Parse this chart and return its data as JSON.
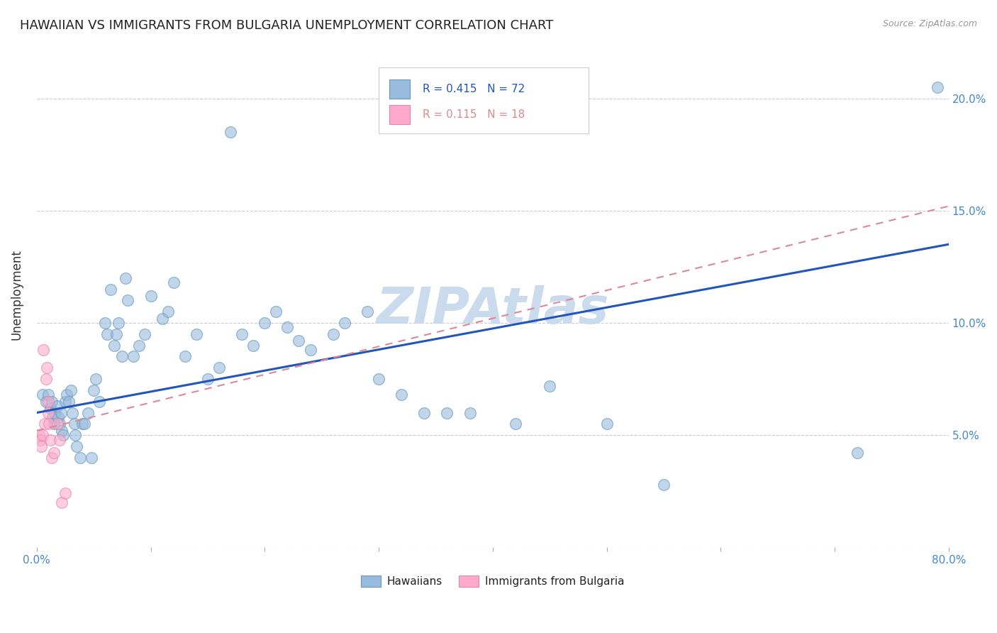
{
  "title": "HAWAIIAN VS IMMIGRANTS FROM BULGARIA UNEMPLOYMENT CORRELATION CHART",
  "source": "Source: ZipAtlas.com",
  "ylabel": "Unemployment",
  "watermark": "ZIPAtlas",
  "legend_blue_r": "R = 0.415",
  "legend_blue_n": "N = 72",
  "legend_pink_r": "R = 0.115",
  "legend_pink_n": "N = 18",
  "legend_label_blue": "Hawaiians",
  "legend_label_pink": "Immigrants from Bulgaria",
  "xlim": [
    0,
    0.8
  ],
  "ylim": [
    0,
    0.225
  ],
  "xticks": [
    0.0,
    0.1,
    0.2,
    0.3,
    0.4,
    0.5,
    0.6,
    0.7,
    0.8
  ],
  "xtick_labels": [
    "0.0%",
    "",
    "",
    "",
    "",
    "",
    "",
    "",
    "80.0%"
  ],
  "ytick_positions": [
    0.0,
    0.05,
    0.1,
    0.15,
    0.2
  ],
  "ytick_labels": [
    "",
    "5.0%",
    "10.0%",
    "15.0%",
    "20.0%"
  ],
  "blue_scatter_x": [
    0.005,
    0.008,
    0.01,
    0.012,
    0.013,
    0.014,
    0.015,
    0.016,
    0.018,
    0.019,
    0.02,
    0.021,
    0.022,
    0.023,
    0.025,
    0.026,
    0.028,
    0.03,
    0.031,
    0.033,
    0.034,
    0.035,
    0.038,
    0.04,
    0.042,
    0.045,
    0.048,
    0.05,
    0.052,
    0.055,
    0.06,
    0.062,
    0.065,
    0.068,
    0.07,
    0.072,
    0.075,
    0.078,
    0.08,
    0.085,
    0.09,
    0.095,
    0.1,
    0.11,
    0.115,
    0.12,
    0.13,
    0.14,
    0.15,
    0.16,
    0.17,
    0.18,
    0.19,
    0.2,
    0.21,
    0.22,
    0.23,
    0.24,
    0.26,
    0.27,
    0.29,
    0.3,
    0.32,
    0.34,
    0.36,
    0.38,
    0.42,
    0.45,
    0.5,
    0.55,
    0.72,
    0.79
  ],
  "blue_scatter_y": [
    0.068,
    0.065,
    0.068,
    0.062,
    0.065,
    0.058,
    0.055,
    0.06,
    0.063,
    0.058,
    0.055,
    0.06,
    0.052,
    0.05,
    0.065,
    0.068,
    0.065,
    0.07,
    0.06,
    0.055,
    0.05,
    0.045,
    0.04,
    0.055,
    0.055,
    0.06,
    0.04,
    0.07,
    0.075,
    0.065,
    0.1,
    0.095,
    0.115,
    0.09,
    0.095,
    0.1,
    0.085,
    0.12,
    0.11,
    0.085,
    0.09,
    0.095,
    0.112,
    0.102,
    0.105,
    0.118,
    0.085,
    0.095,
    0.075,
    0.08,
    0.185,
    0.095,
    0.09,
    0.1,
    0.105,
    0.098,
    0.092,
    0.088,
    0.095,
    0.1,
    0.105,
    0.075,
    0.068,
    0.06,
    0.06,
    0.06,
    0.055,
    0.072,
    0.055,
    0.028,
    0.042,
    0.205
  ],
  "pink_scatter_x": [
    0.002,
    0.003,
    0.004,
    0.005,
    0.006,
    0.007,
    0.008,
    0.009,
    0.01,
    0.01,
    0.011,
    0.012,
    0.013,
    0.015,
    0.018,
    0.02,
    0.022,
    0.025
  ],
  "pink_scatter_y": [
    0.05,
    0.048,
    0.045,
    0.05,
    0.088,
    0.055,
    0.075,
    0.08,
    0.065,
    0.06,
    0.055,
    0.048,
    0.04,
    0.042,
    0.055,
    0.048,
    0.02,
    0.024
  ],
  "blue_line_x0": 0.0,
  "blue_line_x1": 0.8,
  "blue_line_y0": 0.06,
  "blue_line_y1": 0.135,
  "pink_line_x0": 0.0,
  "pink_line_x1": 0.8,
  "pink_line_y0": 0.052,
  "pink_line_y1": 0.152,
  "blue_color": "#99BBDD",
  "pink_color": "#FFAACC",
  "blue_edge_color": "#6699BB",
  "pink_edge_color": "#DD88AA",
  "blue_line_color": "#2255BB",
  "pink_line_color": "#DD8899",
  "background_color": "#FFFFFF",
  "grid_color": "#CCCCCC",
  "title_fontsize": 13,
  "tick_label_color": "#4488CC",
  "watermark_color": "#C5D8EC",
  "watermark_alpha": 0.9,
  "watermark_fontsize": 52,
  "scatter_size": 130,
  "scatter_alpha": 0.6,
  "scatter_edge_alpha": 0.8,
  "scatter_edge_width": 1.0
}
